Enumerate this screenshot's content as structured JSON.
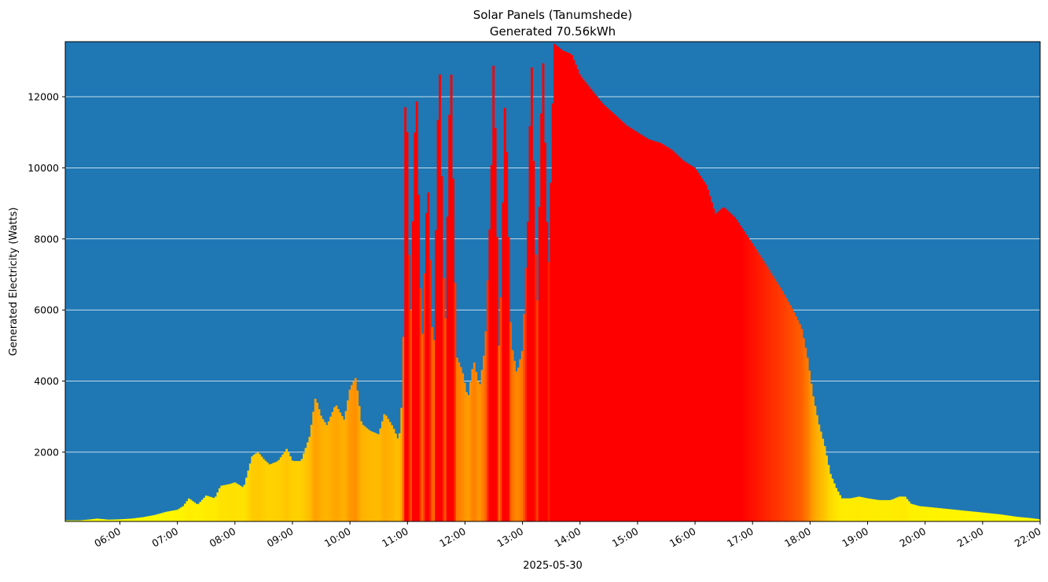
{
  "chart_data": {
    "type": "bar",
    "title": "Solar Panels (Tanumshede)",
    "subtitle": "Generated 70.56kWh",
    "xlabel": "2025-05-30",
    "ylabel": "Generated Electricity (Watts)",
    "background_color": "#1f77b4",
    "grid": true,
    "grid_color": "#ffffff",
    "ylim": [
      50,
      13550
    ],
    "y_ticks": [
      2000,
      4000,
      6000,
      8000,
      10000,
      12000
    ],
    "y_tick_labels": [
      "2000",
      "4000",
      "6000",
      "8000",
      "10000",
      "12000"
    ],
    "x_range_hours": [
      5.05,
      22.0
    ],
    "x_ticks_hours": [
      6,
      7,
      8,
      9,
      10,
      11,
      12,
      13,
      14,
      15,
      16,
      17,
      18,
      19,
      20,
      21,
      22
    ],
    "x_tick_labels": [
      "06:00",
      "07:00",
      "08:00",
      "09:00",
      "10:00",
      "11:00",
      "12:00",
      "13:00",
      "14:00",
      "15:00",
      "16:00",
      "17:00",
      "18:00",
      "19:00",
      "20:00",
      "21:00",
      "22:00"
    ],
    "bar_width_hours": 0.0333,
    "color_scale": {
      "low": "#ffff00",
      "mid": "#ff9900",
      "high": "#ff0000",
      "max_value": 13500
    },
    "samples": [
      [
        5.05,
        80
      ],
      [
        5.3,
        80
      ],
      [
        5.5,
        110
      ],
      [
        5.6,
        130
      ],
      [
        5.8,
        100
      ],
      [
        6.0,
        110
      ],
      [
        6.2,
        130
      ],
      [
        6.4,
        170
      ],
      [
        6.6,
        230
      ],
      [
        6.8,
        320
      ],
      [
        7.0,
        380
      ],
      [
        7.1,
        480
      ],
      [
        7.2,
        700
      ],
      [
        7.35,
        520
      ],
      [
        7.5,
        780
      ],
      [
        7.65,
        700
      ],
      [
        7.75,
        1050
      ],
      [
        7.9,
        1100
      ],
      [
        8.0,
        1150
      ],
      [
        8.15,
        1000
      ],
      [
        8.3,
        1900
      ],
      [
        8.4,
        2000
      ],
      [
        8.5,
        1800
      ],
      [
        8.6,
        1650
      ],
      [
        8.75,
        1750
      ],
      [
        8.9,
        2100
      ],
      [
        9.0,
        1750
      ],
      [
        9.15,
        1750
      ],
      [
        9.3,
        2450
      ],
      [
        9.4,
        3550
      ],
      [
        9.5,
        3000
      ],
      [
        9.6,
        2750
      ],
      [
        9.75,
        3350
      ],
      [
        9.9,
        2900
      ],
      [
        10.0,
        3800
      ],
      [
        10.1,
        4100
      ],
      [
        10.2,
        2800
      ],
      [
        10.35,
        2600
      ],
      [
        10.5,
        2500
      ],
      [
        10.6,
        3100
      ],
      [
        10.75,
        2700
      ],
      [
        10.85,
        2300
      ],
      [
        10.92,
        3800
      ],
      [
        10.97,
        13500
      ],
      [
        11.05,
        5200
      ],
      [
        11.15,
        12700
      ],
      [
        11.25,
        4800
      ],
      [
        11.35,
        9900
      ],
      [
        11.45,
        4200
      ],
      [
        11.55,
        13500
      ],
      [
        11.65,
        4900
      ],
      [
        11.75,
        13500
      ],
      [
        11.85,
        4700
      ],
      [
        11.95,
        4300
      ],
      [
        12.05,
        3500
      ],
      [
        12.15,
        4600
      ],
      [
        12.25,
        3800
      ],
      [
        12.35,
        5000
      ],
      [
        12.45,
        9300
      ],
      [
        12.5,
        13500
      ],
      [
        12.6,
        4300
      ],
      [
        12.7,
        12300
      ],
      [
        12.8,
        5100
      ],
      [
        12.9,
        4200
      ],
      [
        13.0,
        4900
      ],
      [
        13.1,
        8800
      ],
      [
        13.15,
        13500
      ],
      [
        13.25,
        5600
      ],
      [
        13.35,
        13500
      ],
      [
        13.45,
        6800
      ],
      [
        13.55,
        13500
      ],
      [
        13.7,
        13300
      ],
      [
        13.85,
        13200
      ],
      [
        14.0,
        12600
      ],
      [
        14.2,
        12200
      ],
      [
        14.4,
        11800
      ],
      [
        14.6,
        11500
      ],
      [
        14.8,
        11200
      ],
      [
        15.0,
        11000
      ],
      [
        15.2,
        10800
      ],
      [
        15.4,
        10700
      ],
      [
        15.6,
        10500
      ],
      [
        15.8,
        10200
      ],
      [
        16.0,
        10000
      ],
      [
        16.2,
        9500
      ],
      [
        16.35,
        8700
      ],
      [
        16.5,
        8900
      ],
      [
        16.7,
        8600
      ],
      [
        16.9,
        8100
      ],
      [
        17.1,
        7600
      ],
      [
        17.3,
        7100
      ],
      [
        17.5,
        6600
      ],
      [
        17.7,
        6000
      ],
      [
        17.85,
        5500
      ],
      [
        17.95,
        4700
      ],
      [
        18.05,
        3600
      ],
      [
        18.15,
        2800
      ],
      [
        18.25,
        2200
      ],
      [
        18.35,
        1400
      ],
      [
        18.45,
        1000
      ],
      [
        18.55,
        700
      ],
      [
        18.7,
        700
      ],
      [
        18.85,
        750
      ],
      [
        19.0,
        700
      ],
      [
        19.2,
        650
      ],
      [
        19.4,
        650
      ],
      [
        19.55,
        750
      ],
      [
        19.65,
        750
      ],
      [
        19.75,
        550
      ],
      [
        19.9,
        480
      ],
      [
        20.1,
        450
      ],
      [
        20.4,
        400
      ],
      [
        20.7,
        350
      ],
      [
        21.0,
        300
      ],
      [
        21.3,
        250
      ],
      [
        21.6,
        180
      ],
      [
        21.8,
        150
      ],
      [
        22.0,
        110
      ]
    ]
  }
}
